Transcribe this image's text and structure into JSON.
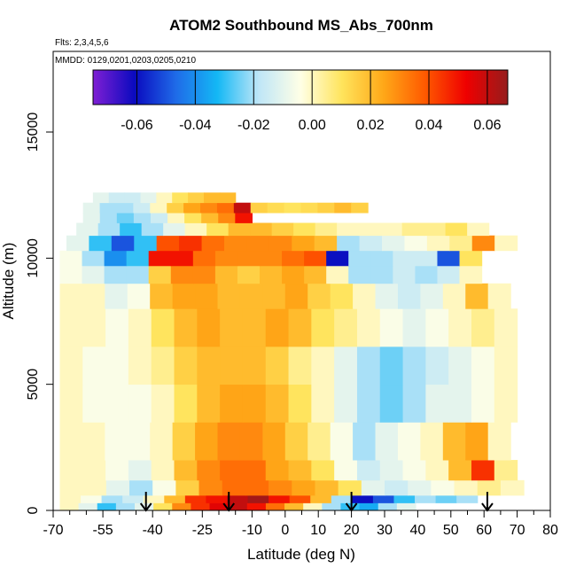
{
  "chart_data": {
    "type": "heatmap",
    "title": "ATOM2 Southbound MS_Abs_700nm",
    "subtitle_flights": "Flts: 2,3,4,5,6",
    "subtitle_dates": "MMDD: 0129,0201,0203,0205,0210",
    "xlabel": "Latitude (deg N)",
    "ylabel": "Altitude (m)",
    "xlim": [
      -70,
      80
    ],
    "ylim": [
      0,
      17500
    ],
    "x_ticks": [
      "-70",
      "-55",
      "-40",
      "-25",
      "-10",
      "0",
      "10",
      "20",
      "30",
      "40",
      "50",
      "60",
      "70",
      "80"
    ],
    "x_tick_values": [
      -70,
      -55,
      -40,
      -25,
      -10,
      0,
      10,
      20,
      30,
      40,
      50,
      60,
      70,
      80
    ],
    "x_minor_ticks": [
      -65,
      -60,
      -50,
      -45,
      -35,
      -30,
      -20,
      -15,
      -5,
      5,
      15,
      25,
      35,
      45,
      55,
      65,
      75
    ],
    "y_ticks": [
      "0",
      "5000",
      "10000",
      "15000"
    ],
    "y_tick_values": [
      0,
      5000,
      10000,
      15000
    ],
    "colorbar": {
      "range": [
        -0.075,
        0.067
      ],
      "tick_labels": [
        "-0.06",
        "-0.04",
        "-0.02",
        "0.00",
        "0.02",
        "0.04",
        "0.06"
      ],
      "tick_values": [
        -0.06,
        -0.04,
        -0.02,
        0.0,
        0.02,
        0.04,
        0.06
      ],
      "colors": [
        "#7f1fd4",
        "#0a0abf",
        "#1f6be8",
        "#14b8f5",
        "#bfe6f7",
        "#ffffe6",
        "#ffe45c",
        "#ffa818",
        "#ff5a00",
        "#ef0000",
        "#961c1c"
      ]
    },
    "profile_arrows_latitude": [
      -42,
      -17,
      20,
      61
    ],
    "grid": false,
    "legend": "colorbar top",
    "note": "values in data units; rows = altitude bands, columns = latitude bins, null = no data",
    "rows": [
      {
        "alt": [
          0,
          300
        ],
        "lat": [
          -68,
          45
        ],
        "v": [
          0.0,
          -0.01,
          -0.03,
          -0.02,
          -0.01,
          0.01,
          0.03,
          0.045,
          0.055,
          0.06,
          0.05,
          0.035,
          0.02,
          0.0,
          -0.02,
          -0.03,
          -0.035,
          -0.02,
          -0.01,
          null
        ]
      },
      {
        "alt": [
          300,
          600
        ],
        "lat": [
          -68,
          58
        ],
        "v": [
          0.0,
          -0.005,
          -0.02,
          -0.015,
          0.0,
          0.02,
          0.045,
          0.05,
          0.06,
          0.065,
          0.05,
          0.04,
          0.02,
          -0.02,
          -0.06,
          -0.05,
          -0.03,
          -0.02,
          -0.025,
          -0.02
        ]
      },
      {
        "alt": [
          600,
          1200
        ],
        "lat": [
          -68,
          72
        ],
        "v": [
          0.0,
          0.0,
          -0.01,
          -0.02,
          -0.005,
          0.015,
          0.03,
          0.035,
          0.035,
          0.03,
          0.025,
          0.02,
          0.01,
          -0.01,
          -0.015,
          -0.01,
          -0.005,
          0.0,
          0.005,
          0.0
        ]
      },
      {
        "alt": [
          1200,
          2000
        ],
        "lat": [
          -68,
          70
        ],
        "v": [
          0.0,
          0.0,
          -0.005,
          -0.01,
          0.0,
          0.02,
          0.03,
          0.035,
          0.035,
          0.025,
          0.02,
          0.01,
          -0.005,
          -0.015,
          -0.01,
          -0.005,
          0.0,
          0.02,
          0.045,
          0.005
        ]
      },
      {
        "alt": [
          2000,
          3500
        ],
        "lat": [
          -68,
          68
        ],
        "v": [
          0.0,
          0.0,
          -0.005,
          -0.005,
          0.0,
          0.015,
          0.025,
          0.03,
          0.03,
          0.025,
          0.015,
          0.005,
          -0.005,
          -0.02,
          -0.01,
          -0.005,
          0.0,
          0.02,
          0.025,
          0.0
        ]
      },
      {
        "alt": [
          3500,
          5000
        ],
        "lat": [
          -68,
          70
        ],
        "v": [
          0.0,
          -0.005,
          -0.005,
          -0.005,
          0.0,
          0.01,
          0.02,
          0.025,
          0.025,
          0.02,
          0.01,
          0.0,
          -0.01,
          -0.02,
          -0.025,
          -0.02,
          -0.01,
          -0.01,
          -0.005,
          0.0
        ]
      },
      {
        "alt": [
          5000,
          6500
        ],
        "lat": [
          -68,
          70
        ],
        "v": [
          0.0,
          -0.005,
          -0.005,
          0.0,
          0.005,
          0.015,
          0.02,
          0.02,
          0.02,
          0.015,
          0.005,
          0.0,
          -0.01,
          -0.02,
          -0.025,
          -0.02,
          -0.015,
          -0.01,
          -0.005,
          0.0
        ]
      },
      {
        "alt": [
          6500,
          8000
        ],
        "lat": [
          -68,
          70
        ],
        "v": [
          0.0,
          0.0,
          -0.005,
          0.0,
          0.01,
          0.02,
          0.025,
          0.02,
          0.02,
          0.025,
          0.02,
          0.01,
          0.005,
          0.0,
          -0.005,
          -0.01,
          -0.005,
          0.0,
          0.005,
          0.0
        ]
      },
      {
        "alt": [
          8000,
          9000
        ],
        "lat": [
          -68,
          68
        ],
        "v": [
          0.0,
          0.0,
          -0.01,
          -0.005,
          0.02,
          0.025,
          0.025,
          0.02,
          0.02,
          0.02,
          0.025,
          0.015,
          0.01,
          0.0,
          -0.01,
          -0.015,
          -0.01,
          0.0,
          0.02,
          0.0
        ]
      },
      {
        "alt": [
          9000,
          9700
        ],
        "lat": [
          -68,
          66
        ],
        "v": [
          -0.005,
          -0.01,
          -0.02,
          -0.02,
          0.015,
          0.03,
          0.03,
          0.02,
          0.015,
          0.02,
          0.025,
          0.02,
          0.0,
          -0.02,
          -0.02,
          -0.015,
          -0.02,
          -0.015,
          0.0,
          null
        ]
      },
      {
        "alt": [
          9700,
          10300
        ],
        "lat": [
          -68,
          66
        ],
        "v": [
          -0.005,
          -0.02,
          -0.04,
          -0.03,
          0.05,
          0.05,
          0.035,
          0.03,
          0.03,
          0.03,
          0.035,
          0.04,
          -0.06,
          -0.02,
          -0.02,
          -0.015,
          -0.015,
          -0.05,
          0.01,
          null
        ]
      },
      {
        "alt": [
          10300,
          10900
        ],
        "lat": [
          -66,
          70
        ],
        "v": [
          -0.01,
          -0.03,
          -0.05,
          -0.03,
          0.04,
          0.045,
          0.035,
          0.03,
          0.03,
          0.03,
          0.025,
          0.02,
          -0.02,
          -0.015,
          -0.01,
          -0.005,
          0.0,
          0.005,
          0.03,
          0.0
        ]
      },
      {
        "alt": [
          10900,
          11400
        ],
        "lat": [
          -63,
          68
        ],
        "v": [
          -0.01,
          -0.02,
          -0.03,
          -0.02,
          -0.01,
          0.0,
          0.01,
          0.02,
          0.02,
          0.015,
          0.01,
          0.005,
          0.0,
          0.0,
          0.0,
          0.005,
          0.005,
          0.01,
          0.0,
          null
        ]
      },
      {
        "alt": [
          11400,
          11800
        ],
        "lat": [
          -61,
          -10
        ],
        "v": [
          -0.01,
          -0.02,
          -0.025,
          -0.02,
          -0.015,
          0.0,
          0.01,
          0.02,
          0.03,
          0.05
        ]
      },
      {
        "alt": [
          11800,
          12200
        ],
        "lat": [
          -61,
          30
        ],
        "v": [
          -0.01,
          -0.02,
          -0.02,
          -0.015,
          0.0,
          0.015,
          0.025,
          0.03,
          0.035,
          0.06,
          0.015,
          0.012,
          0.01,
          0.012,
          0.015,
          0.02,
          0.015,
          null
        ]
      },
      {
        "alt": [
          12200,
          12600
        ],
        "lat": [
          -58,
          -15
        ],
        "v": [
          -0.01,
          -0.015,
          -0.015,
          -0.01,
          0.0,
          0.01,
          0.015,
          0.02,
          0.02
        ]
      }
    ]
  }
}
